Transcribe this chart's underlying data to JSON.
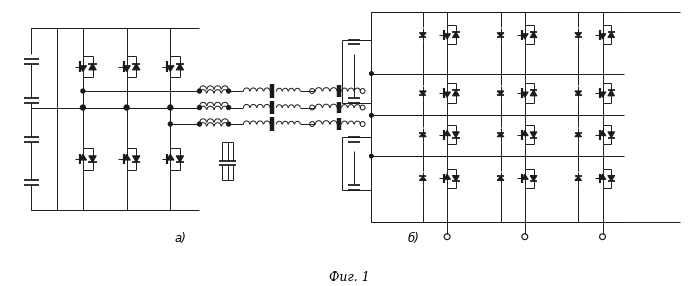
{
  "title": "Фиг. 1",
  "label_a": "а)",
  "label_b": "б)",
  "fig_width": 6.99,
  "fig_height": 2.86,
  "dpi": 100,
  "bg_color": "#ffffff",
  "line_color": "#1a1a1a",
  "line_width": 0.7
}
